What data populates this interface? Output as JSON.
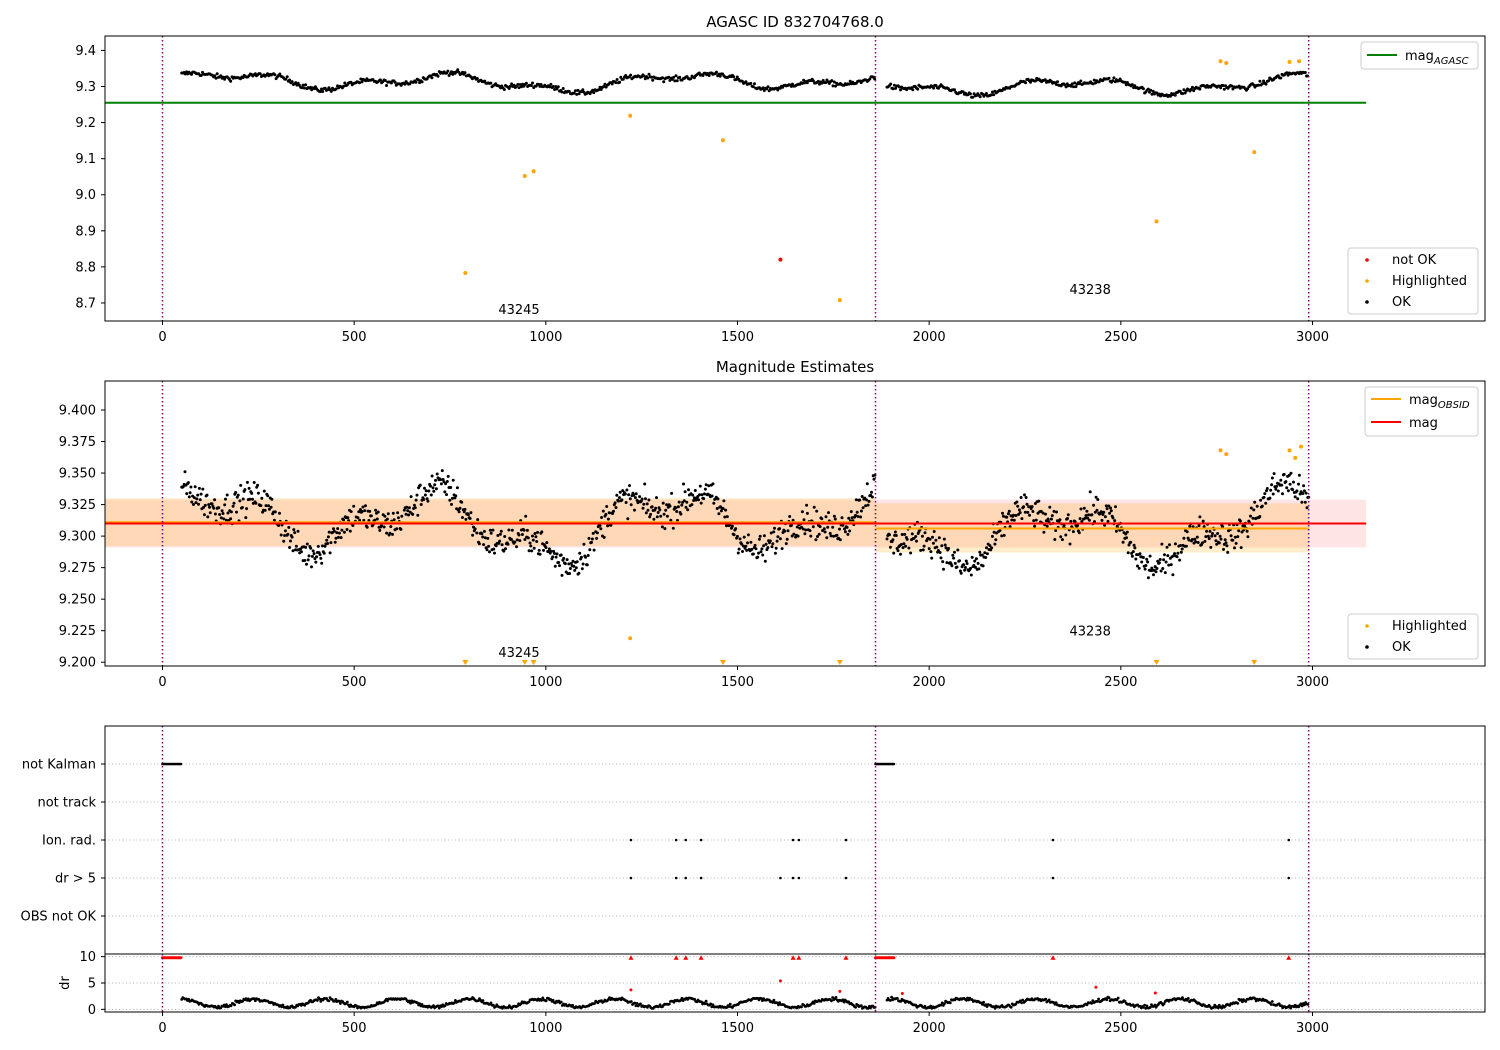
{
  "chart_data": [
    {
      "type": "scatter",
      "title": "AGASC ID 832704768.0",
      "xlabel": "",
      "ylabel": "",
      "xlim": [
        -150,
        3450
      ],
      "ylim": [
        8.65,
        9.44
      ],
      "xticks": [
        0,
        500,
        1000,
        1500,
        2000,
        2500,
        3000
      ],
      "yticks": [
        "8.7",
        "8.8",
        "8.9",
        "9.0",
        "9.1",
        "9.2",
        "9.3",
        "9.4"
      ],
      "vlines": [
        0,
        1860,
        2990
      ],
      "hline": {
        "name": "mag_AGASC",
        "y": 9.255,
        "x": [
          -150,
          3140
        ],
        "color": "#008000"
      },
      "legend_top": {
        "placement": "top-right",
        "entries": [
          {
            "label": "mag",
            "sub": "AGASC",
            "color": "#008000",
            "kind": "line"
          }
        ]
      },
      "legend_bottom": {
        "placement": "bottom-right",
        "entries": [
          {
            "label": "not OK",
            "color": "#ff0000",
            "kind": "dot"
          },
          {
            "label": "Highlighted",
            "color": "#ffa500",
            "kind": "dot"
          },
          {
            "label": "OK",
            "color": "#000000",
            "kind": "dot"
          }
        ]
      },
      "annotations": [
        {
          "text": "43245",
          "x": 930,
          "y": 8.67
        },
        {
          "text": "43238",
          "x": 2420,
          "y": 8.725
        }
      ],
      "segments": [
        {
          "x0": 50,
          "x1": 1860,
          "base": 9.313,
          "amp": 0.018,
          "noise": 0.007
        },
        {
          "x0": 1890,
          "x1": 2990,
          "base": 9.303,
          "amp": 0.018,
          "noise": 0.007
        }
      ],
      "highlighted": [
        [
          790,
          8.783
        ],
        [
          945,
          9.052
        ],
        [
          968,
          9.065
        ],
        [
          1220,
          9.219
        ],
        [
          1462,
          9.151
        ],
        [
          1767,
          8.708
        ],
        [
          2593,
          8.926
        ],
        [
          2848,
          9.118
        ],
        [
          2760,
          9.37
        ],
        [
          2775,
          9.365
        ],
        [
          2940,
          9.368
        ],
        [
          2965,
          9.37
        ]
      ],
      "not_ok": [
        [
          1612,
          8.82
        ]
      ]
    },
    {
      "type": "scatter",
      "title": "Magnitude Estimates",
      "xlabel": "",
      "ylabel": "",
      "xlim": [
        -150,
        3450
      ],
      "ylim": [
        9.197,
        9.423
      ],
      "xticks": [
        0,
        500,
        1000,
        1500,
        2000,
        2500,
        3000
      ],
      "yticks": [
        "9.200",
        "9.225",
        "9.250",
        "9.275",
        "9.300",
        "9.325",
        "9.350",
        "9.375",
        "9.400"
      ],
      "vlines": [
        0,
        1860,
        2990
      ],
      "mag_line": {
        "name": "mag",
        "y": 9.31,
        "x": [
          -150,
          3140
        ],
        "band": [
          9.291,
          9.329
        ],
        "color": "#ff0000"
      },
      "obsid_lines": [
        {
          "name": "mag_OBSID",
          "x": [
            -150,
            1860
          ],
          "y": 9.311,
          "band": [
            9.292,
            9.33
          ],
          "color": "#ffa500"
        },
        {
          "name": "mag_OBSID",
          "x": [
            1860,
            2990
          ],
          "y": 9.306,
          "band": [
            9.287,
            9.326
          ],
          "color": "#ffa500"
        }
      ],
      "legend_top": {
        "placement": "top-right",
        "entries": [
          {
            "label": "mag",
            "sub": "OBSID",
            "color": "#ffa500",
            "kind": "line"
          },
          {
            "label": "mag",
            "sub": "",
            "color": "#ff0000",
            "kind": "line"
          }
        ]
      },
      "legend_bottom": {
        "placement": "bottom-right",
        "entries": [
          {
            "label": "Highlighted",
            "color": "#ffa500",
            "kind": "dot"
          },
          {
            "label": "OK",
            "color": "#000000",
            "kind": "dot"
          }
        ]
      },
      "annotations": [
        {
          "text": "43245",
          "x": 930,
          "y": 9.204
        },
        {
          "text": "43238",
          "x": 2420,
          "y": 9.221
        }
      ],
      "segments": [
        {
          "x0": 50,
          "x1": 1860,
          "base": 9.311,
          "amp": 0.02,
          "noise": 0.012
        },
        {
          "x0": 1890,
          "x1": 2990,
          "base": 9.305,
          "amp": 0.02,
          "noise": 0.012
        }
      ],
      "highlighted": [
        [
          1220,
          9.219
        ],
        [
          2760,
          9.368
        ],
        [
          2775,
          9.365
        ],
        [
          2940,
          9.368
        ],
        [
          2955,
          9.362
        ],
        [
          2970,
          9.371
        ]
      ],
      "offscale_markers": [
        790,
        945,
        968,
        1462,
        1767,
        2593,
        2848
      ]
    },
    {
      "type": "scatter",
      "title": "",
      "xlabel": "",
      "ylabel": "",
      "xlim": [
        -150,
        3450
      ],
      "xticks": [
        0,
        500,
        1000,
        1500,
        2000,
        2500,
        3000
      ],
      "categories": [
        "not Kalman",
        "not track",
        "Ion. rad.",
        "dr > 5",
        "OBS not OK"
      ],
      "vlines": [
        0,
        1860,
        2990
      ],
      "flags": {
        "not Kalman": [
          [
            0,
            50
          ],
          [
            1860,
            1910
          ]
        ],
        "not track": [],
        "Ion. rad.": [
          1222,
          1340,
          1365,
          1405,
          1645,
          1660,
          1783,
          2323,
          2938
        ],
        "dr > 5": [
          1222,
          1340,
          1365,
          1405,
          1612,
          1645,
          1660,
          1783,
          2323,
          2938
        ],
        "OBS not OK": []
      }
    },
    {
      "type": "scatter",
      "title": "",
      "xlabel": "",
      "ylabel": "dr",
      "xlim": [
        -150,
        3450
      ],
      "ylim": [
        -0.5,
        10.5
      ],
      "xticks": [
        "0",
        "500",
        "1000",
        "1500",
        "2000",
        "2500",
        "3000"
      ],
      "yticks": [
        "0",
        "5",
        "10"
      ],
      "vlines": [
        0,
        1860,
        2990
      ],
      "dr_capped": [
        [
          0,
          50
        ],
        [
          1860,
          1910
        ]
      ],
      "dr_capped_points": [
        1222,
        1340,
        1365,
        1405,
        1645,
        1660,
        1783,
        2323,
        2938
      ],
      "dr_red_points": [
        [
          1222,
          3.7
        ],
        [
          1612,
          5.4
        ],
        [
          1767,
          3.4
        ],
        [
          1930,
          3.0
        ],
        [
          2435,
          4.2
        ],
        [
          2590,
          3.1
        ]
      ],
      "segments": [
        {
          "x0": 50,
          "x1": 1860,
          "base": 1.2
        },
        {
          "x0": 1890,
          "x1": 2990,
          "base": 1.2
        }
      ]
    }
  ]
}
